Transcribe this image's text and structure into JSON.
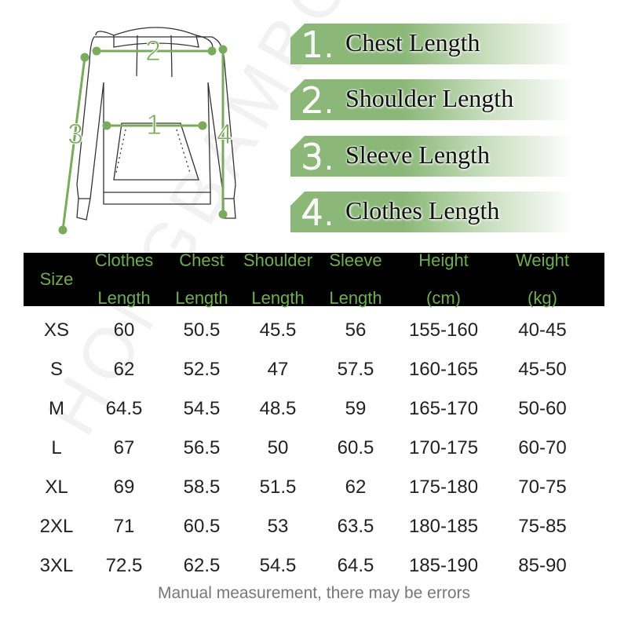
{
  "diagram": {
    "labels": [
      "1",
      "2",
      "3",
      "4"
    ],
    "accent_color": "#7aab5c"
  },
  "legend": [
    {
      "num": "1.",
      "label": "Chest Length"
    },
    {
      "num": "2.",
      "label": "Shoulder Length"
    },
    {
      "num": "3.",
      "label": "Sleeve Length"
    },
    {
      "num": "4.",
      "label": "Clothes Length"
    }
  ],
  "table": {
    "headers": [
      [
        "Size"
      ],
      [
        "Clothes",
        "Length"
      ],
      [
        "Chest",
        "Length"
      ],
      [
        "Shoulder",
        "Length"
      ],
      [
        "Sleeve",
        "Length"
      ],
      [
        "Height",
        "(cm)"
      ],
      [
        "Weight",
        "(kg)"
      ]
    ],
    "rows": [
      [
        "XS",
        "60",
        "50.5",
        "45.5",
        "56",
        "155-160",
        "40-45"
      ],
      [
        "S",
        "62",
        "52.5",
        "47",
        "57.5",
        "160-165",
        "45-50"
      ],
      [
        "M",
        "64.5",
        "54.5",
        "48.5",
        "59",
        "165-170",
        "50-60"
      ],
      [
        "L",
        "67",
        "56.5",
        "50",
        "60.5",
        "170-175",
        "60-70"
      ],
      [
        "XL",
        "69",
        "58.5",
        "51.5",
        "62",
        "175-180",
        "70-75"
      ],
      [
        "2XL",
        "71",
        "60.5",
        "53",
        "63.5",
        "180-185",
        "75-85"
      ],
      [
        "3XL",
        "72.5",
        "62.5",
        "54.5",
        "64.5",
        "185-190",
        "85-90"
      ]
    ]
  },
  "note": "Manual measurement, there may be errors",
  "watermark": "HONGBAMBOO"
}
